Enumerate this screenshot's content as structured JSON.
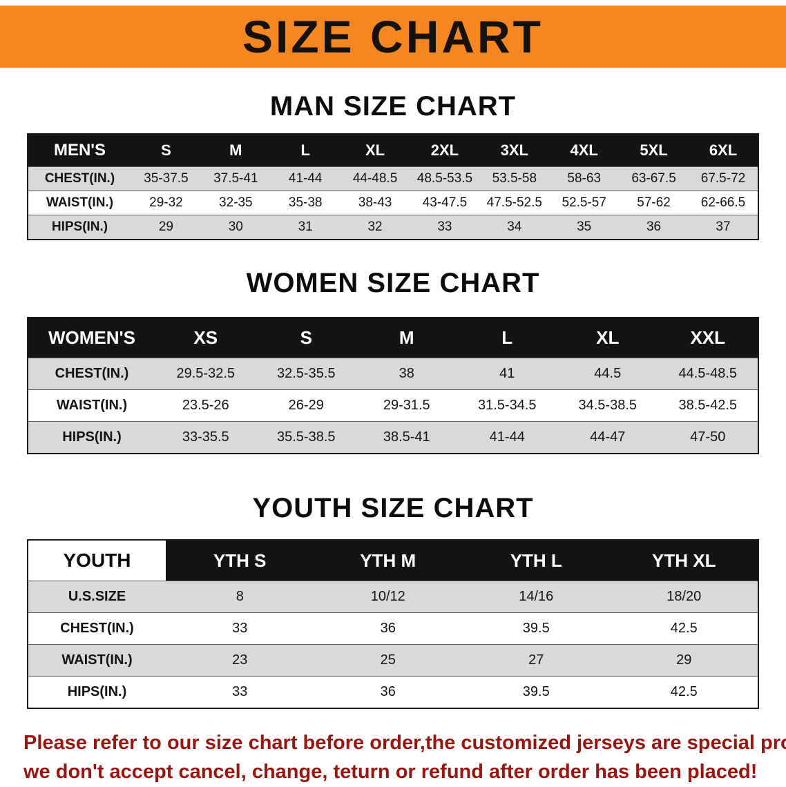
{
  "banner": {
    "title": "SIZE CHART"
  },
  "sections": [
    {
      "title": "MAN SIZE CHART",
      "table": {
        "header": [
          "MEN'S",
          "S",
          "M",
          "L",
          "XL",
          "2XL",
          "3XL",
          "4XL",
          "5XL",
          "6XL"
        ],
        "rows": [
          [
            "CHEST(IN.)",
            "35-37.5",
            "37.5-41",
            "41-44",
            "44-48.5",
            "48.5-53.5",
            "53.5-58",
            "58-63",
            "63-67.5",
            "67.5-72"
          ],
          [
            "WAIST(IN.)",
            "29-32",
            "32-35",
            "35-38",
            "38-43",
            "43-47.5",
            "47.5-52.5",
            "52.5-57",
            "57-62",
            "62-66.5"
          ],
          [
            "HIPS(IN.)",
            "29",
            "30",
            "31",
            "32",
            "33",
            "34",
            "35",
            "36",
            "37"
          ]
        ]
      }
    },
    {
      "title": "WOMEN SIZE CHART",
      "table": {
        "header": [
          "WOMEN'S",
          "XS",
          "S",
          "M",
          "L",
          "XL",
          "XXL"
        ],
        "rows": [
          [
            "CHEST(IN.)",
            "29.5-32.5",
            "32.5-35.5",
            "38",
            "41",
            "44.5",
            "44.5-48.5"
          ],
          [
            "WAIST(IN.)",
            "23.5-26",
            "26-29",
            "29-31.5",
            "31.5-34.5",
            "34.5-38.5",
            "38.5-42.5"
          ],
          [
            "HIPS(IN.)",
            "33-35.5",
            "35.5-38.5",
            "38.5-41",
            "41-44",
            "44-47",
            "47-50"
          ]
        ]
      }
    },
    {
      "title": "YOUTH SIZE CHART",
      "table": {
        "header": [
          "YOUTH",
          "YTH S",
          "YTH M",
          "YTH L",
          "YTH XL"
        ],
        "rows": [
          [
            "U.S.SIZE",
            "8",
            "10/12",
            "14/16",
            "18/20"
          ],
          [
            "CHEST(IN.)",
            "33",
            "36",
            "39.5",
            "42.5"
          ],
          [
            "WAIST(IN.)",
            "23",
            "25",
            "27",
            "29"
          ],
          [
            "HIPS(IN.)",
            "33",
            "36",
            "39.5",
            "42.5"
          ]
        ]
      }
    }
  ],
  "footer": {
    "line1": "Please refer to our size chart before order,the customized jerseys are special products,",
    "line2": "we don't accept cancel, change, teturn or refund after order has been placed!"
  },
  "colors": {
    "banner_bg": "#F6861F",
    "table_header_bg": "#141414",
    "row_stripe_bg": "#D9D9D9",
    "footer_text": "#9A1410"
  }
}
